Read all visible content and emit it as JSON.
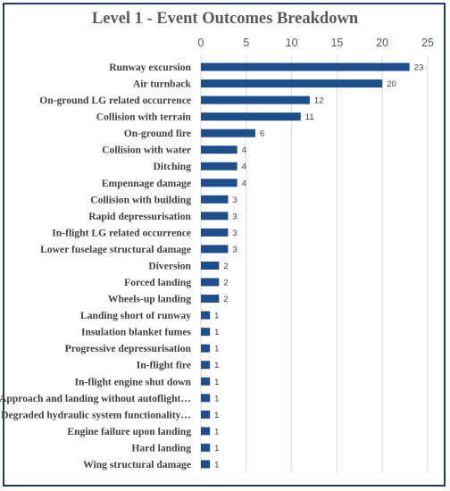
{
  "chart_data": {
    "type": "bar",
    "orientation": "horizontal",
    "title": "Level 1 - Event Outcomes Breakdown",
    "xaxis_position": "top",
    "xlim": [
      0,
      25
    ],
    "xticks": [
      0,
      5,
      10,
      15,
      20,
      25
    ],
    "grid": true,
    "bar_color": "#1f4e8c",
    "categories": [
      "Runway excursion",
      "Air turnback",
      "On-ground LG related occurrence",
      "Collision with terrain",
      "On-ground fire",
      "Collision with water",
      "Ditching",
      "Empennage damage",
      "Collision with building",
      "Rapid depressurisation",
      "In-flight LG related occurrence",
      "Lower fuselage structural damage",
      "Diversion",
      "Forced landing",
      "Wheels-up landing",
      "Landing short of runway",
      "Insulation blanket fumes",
      "Progressive depressurisation",
      "In-flight fire",
      "In-flight engine shut down",
      "Approach and landing without autoflight…",
      "Degraded hydraulic system functionality…",
      "Engine failure upon landing",
      "Hard landing",
      "Wing structural damage"
    ],
    "values": [
      23,
      20,
      12,
      11,
      6,
      4,
      4,
      4,
      3,
      3,
      3,
      3,
      2,
      2,
      2,
      1,
      1,
      1,
      1,
      1,
      1,
      1,
      1,
      1,
      1
    ]
  }
}
